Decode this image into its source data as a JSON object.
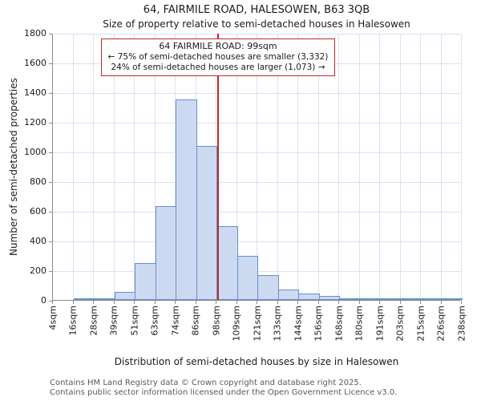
{
  "title": "64, FAIRMILE ROAD, HALESOWEN, B63 3QB",
  "subtitle": "Size of property relative to semi-detached houses in Halesowen",
  "annotation": {
    "line1": "64 FAIRMILE ROAD: 99sqm",
    "line2": "← 75% of semi-detached houses are smaller (3,332)",
    "line3": "24% of semi-detached houses are larger (1,073) →"
  },
  "chart_data": {
    "type": "bar",
    "title": "64, FAIRMILE ROAD, HALESOWEN, B63 3QB",
    "subtitle": "Size of property relative to semi-detached houses in Halesowen",
    "xlabel": "Distribution of semi-detached houses by size in Halesowen",
    "ylabel": "Number of semi-detached properties",
    "ylim": [
      0,
      1800
    ],
    "ytick_step": 200,
    "ytick_labels": [
      "0",
      "200",
      "400",
      "600",
      "800",
      "1000",
      "1200",
      "1400",
      "1600",
      "1800"
    ],
    "bin_edges_sqm": [
      4,
      16,
      28,
      39,
      51,
      63,
      74,
      86,
      98,
      109,
      121,
      133,
      144,
      156,
      168,
      180,
      191,
      203,
      215,
      226,
      238
    ],
    "tick_labels": [
      "4sqm",
      "16sqm",
      "28sqm",
      "39sqm",
      "51sqm",
      "63sqm",
      "74sqm",
      "86sqm",
      "98sqm",
      "109sqm",
      "121sqm",
      "133sqm",
      "144sqm",
      "156sqm",
      "168sqm",
      "180sqm",
      "191sqm",
      "203sqm",
      "215sqm",
      "226sqm",
      "238sqm"
    ],
    "values": [
      0,
      5,
      10,
      55,
      250,
      630,
      1350,
      1040,
      500,
      300,
      170,
      70,
      45,
      25,
      10,
      8,
      5,
      5,
      5,
      5
    ],
    "marker": {
      "value_sqm": 99,
      "label": "64 FAIRMILE ROAD: 99sqm"
    },
    "grid": true,
    "legend": false
  },
  "footer": {
    "line1": "Contains HM Land Registry data © Crown copyright and database right 2025.",
    "line2": "Contains public sector information licensed under the Open Government Licence v3.0."
  },
  "colors": {
    "bar_fill": "#ccdaf1",
    "bar_border": "#6590cc",
    "grid": "#d9e1f2",
    "axis": "#8a8a8a",
    "marker": "#c02a2a",
    "annotation_border": "#c02a2a",
    "text": "#1a1a1a",
    "footer_text": "#595959"
  }
}
